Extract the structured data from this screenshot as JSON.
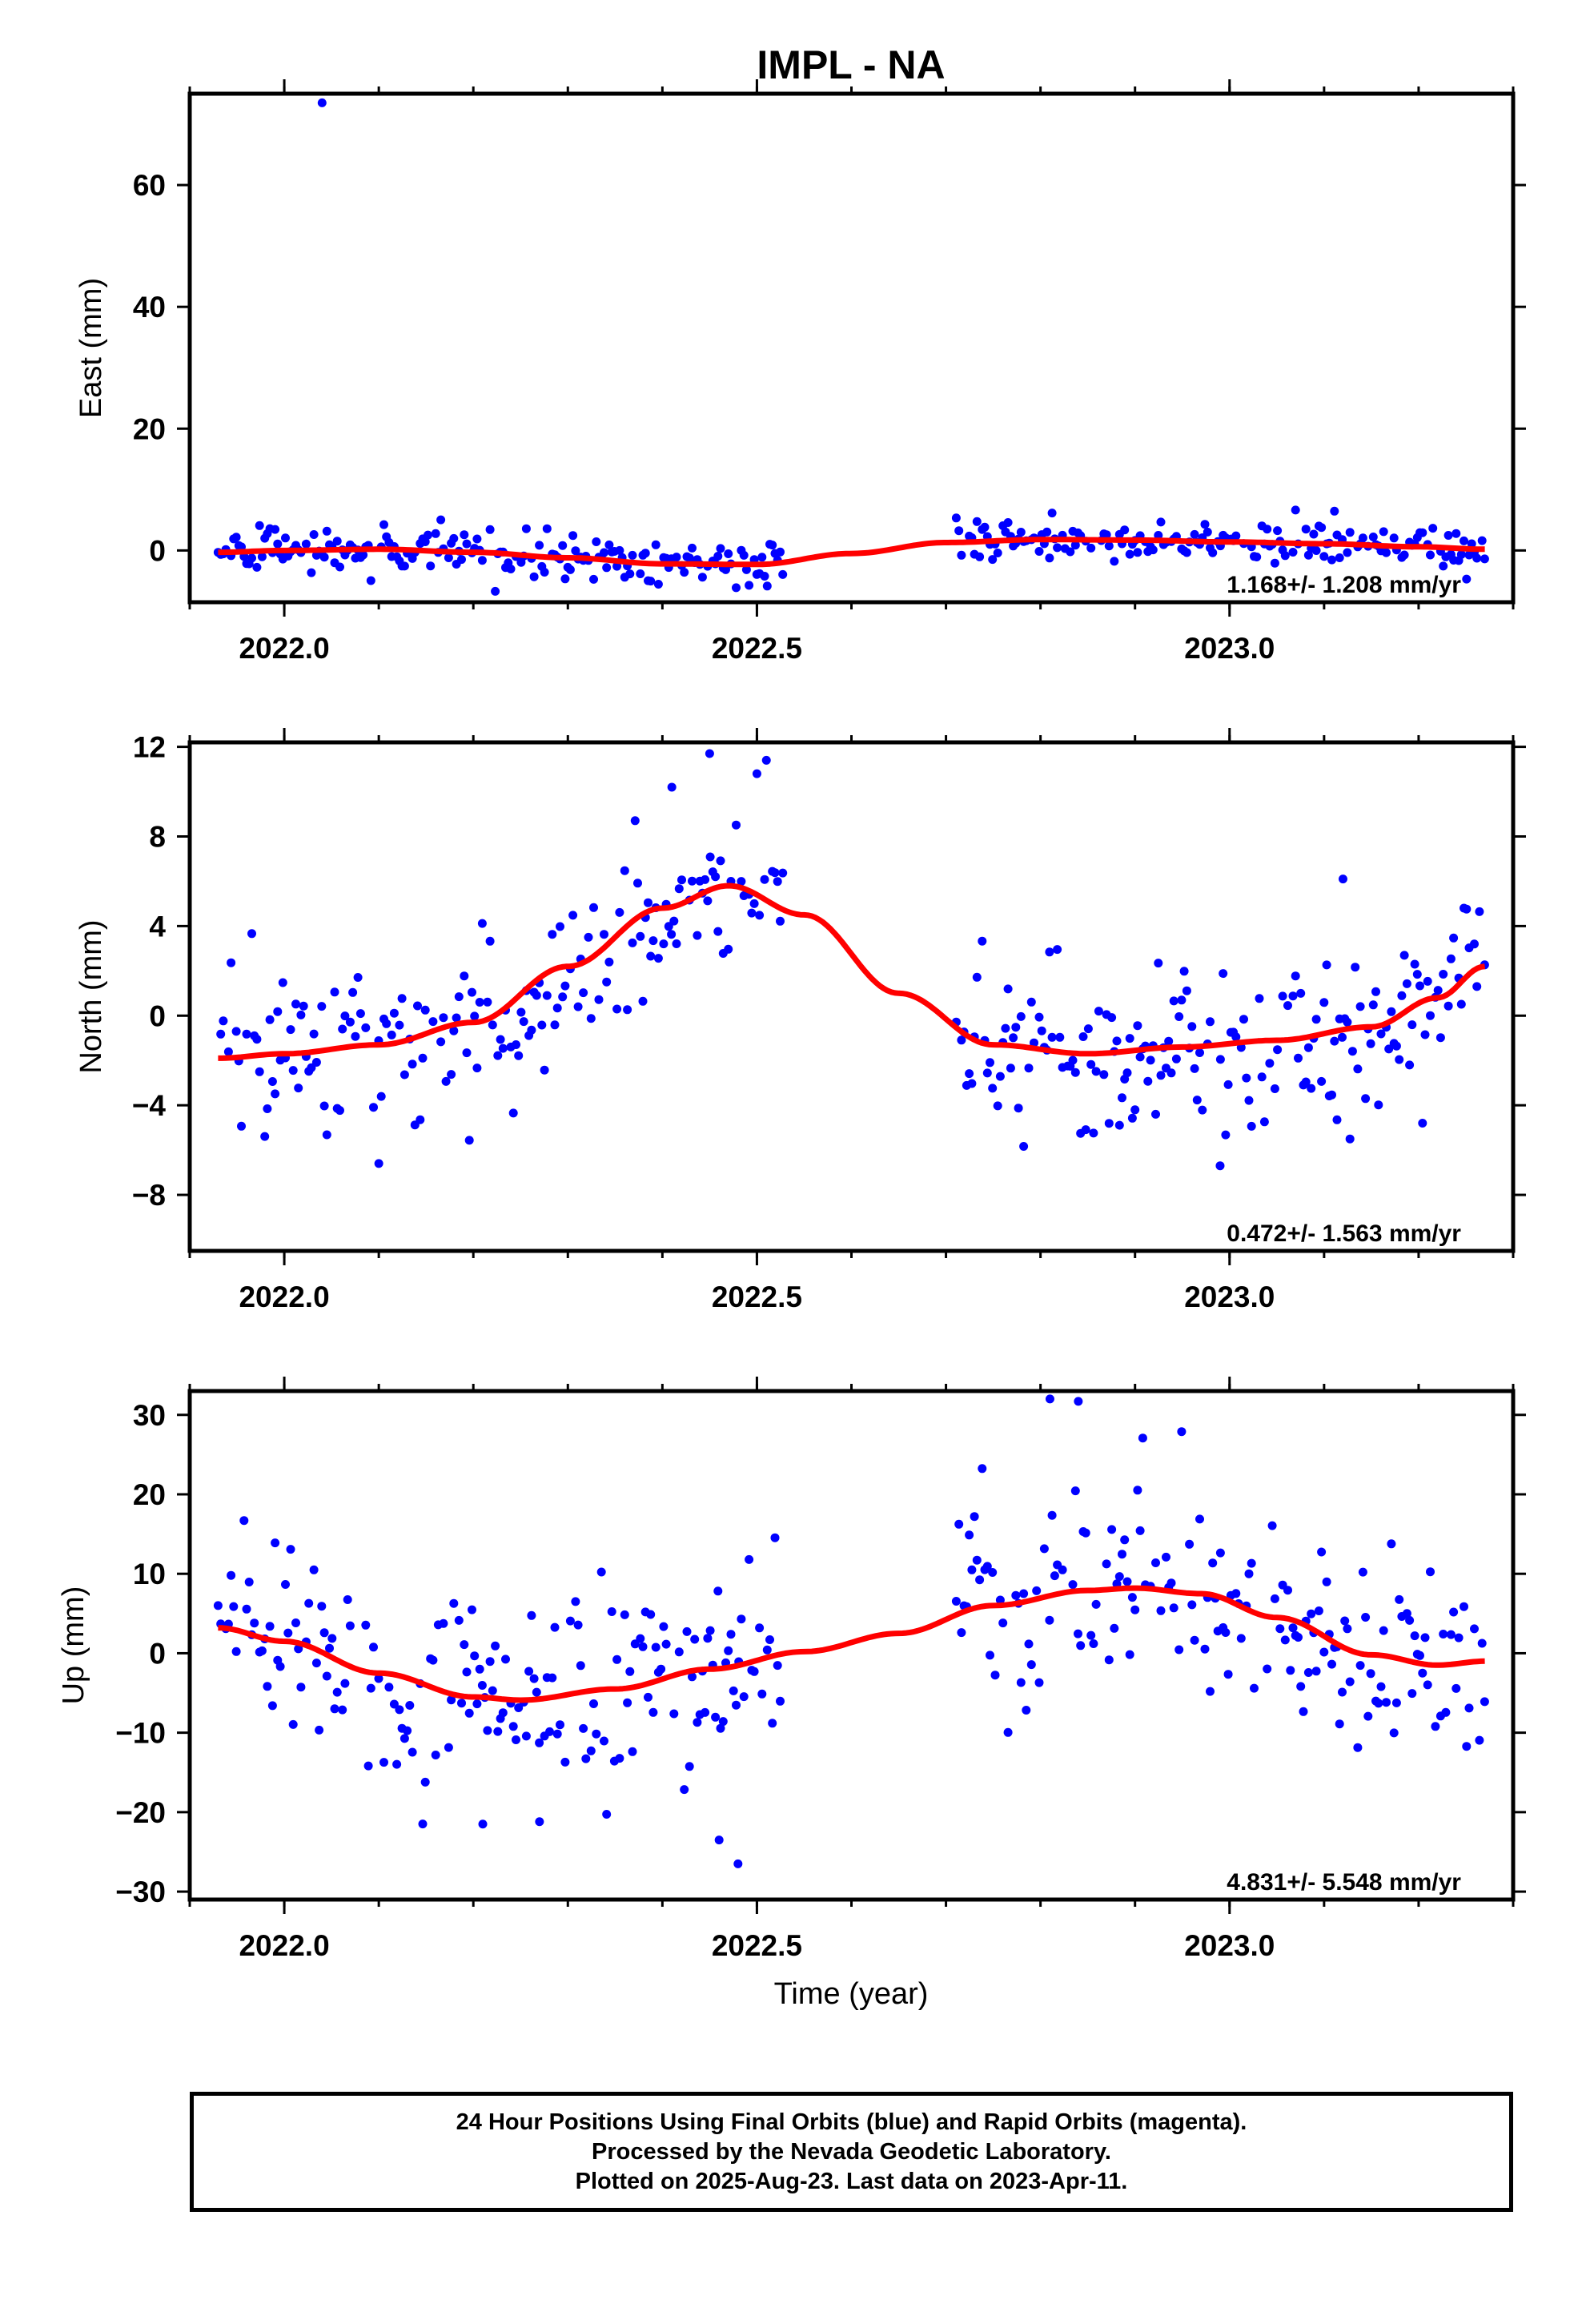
{
  "chart_data": [
    {
      "type": "scatter",
      "title": "IMPL - NA",
      "xlabel": "",
      "ylabel": "East (mm)",
      "xlim": [
        2021.9,
        2023.3
      ],
      "ylim": [
        -8.5,
        75
      ],
      "xticks": [
        {
          "v": 2022.0,
          "label": "2022.0"
        },
        {
          "v": 2022.5,
          "label": "2022.5"
        },
        {
          "v": 2023.0,
          "label": "2023.0"
        }
      ],
      "yticks": [
        {
          "v": 0,
          "label": "0"
        },
        {
          "v": 20,
          "label": "20"
        },
        {
          "v": 40,
          "label": "40"
        },
        {
          "v": 60,
          "label": "60"
        }
      ],
      "rate_text": "1.168+/- 1.208 mm/yr",
      "colors": {
        "final_orbits": "#0000ff",
        "model": "#ff0000"
      },
      "grid": false,
      "data_gap": [
        2022.53,
        2022.71
      ],
      "model_curve": {
        "x": [
          2021.93,
          2022.0,
          2022.1,
          2022.2,
          2022.3,
          2022.4,
          2022.5,
          2022.6,
          2022.7,
          2022.8,
          2022.9,
          2023.0,
          2023.1,
          2023.2,
          2023.27
        ],
        "y": [
          -0.3,
          0.0,
          0.2,
          -0.3,
          -1.2,
          -2.2,
          -2.3,
          -0.5,
          1.3,
          1.8,
          1.7,
          1.4,
          1.1,
          0.6,
          0.2
        ]
      },
      "outliers": [
        {
          "x": 2022.04,
          "y": 73.5
        }
      ],
      "scatter_noise_sd": 1.8
    },
    {
      "type": "scatter",
      "title": "",
      "xlabel": "",
      "ylabel": "North (mm)",
      "xlim": [
        2021.9,
        2023.3
      ],
      "ylim": [
        -10.5,
        12.2
      ],
      "xticks": [
        {
          "v": 2022.0,
          "label": "2022.0"
        },
        {
          "v": 2022.5,
          "label": "2022.5"
        },
        {
          "v": 2023.0,
          "label": "2023.0"
        }
      ],
      "yticks": [
        {
          "v": -8,
          "label": "−8"
        },
        {
          "v": -4,
          "label": "−4"
        },
        {
          "v": 0,
          "label": "0"
        },
        {
          "v": 4,
          "label": "4"
        },
        {
          "v": 8,
          "label": "8"
        },
        {
          "v": 12,
          "label": "12"
        }
      ],
      "rate_text": "0.472+/- 1.563 mm/yr",
      "colors": {
        "final_orbits": "#0000ff",
        "model": "#ff0000"
      },
      "grid": false,
      "data_gap": [
        2022.53,
        2022.71
      ],
      "model_curve": {
        "x": [
          2021.93,
          2022.0,
          2022.1,
          2022.2,
          2022.3,
          2022.4,
          2022.47,
          2022.55,
          2022.65,
          2022.75,
          2022.85,
          2022.95,
          2023.05,
          2023.15,
          2023.22,
          2023.27
        ],
        "y": [
          -1.9,
          -1.7,
          -1.3,
          -0.3,
          2.2,
          4.8,
          5.8,
          4.5,
          1.0,
          -1.3,
          -1.7,
          -1.4,
          -1.1,
          -0.5,
          0.8,
          2.2
        ]
      },
      "outliers": [
        {
          "x": 2022.41,
          "y": 10.2
        },
        {
          "x": 2022.45,
          "y": 11.7
        },
        {
          "x": 2022.5,
          "y": 10.8
        },
        {
          "x": 2022.51,
          "y": 11.4
        },
        {
          "x": 2022.1,
          "y": -6.6
        },
        {
          "x": 2022.99,
          "y": -6.7
        },
        {
          "x": 2023.12,
          "y": 6.1
        }
      ],
      "scatter_noise_sd": 1.9
    },
    {
      "type": "scatter",
      "title": "",
      "xlabel": "Time (year)",
      "ylabel": "Up (mm)",
      "xlim": [
        2021.9,
        2023.3
      ],
      "ylim": [
        -31,
        33
      ],
      "xticks": [
        {
          "v": 2022.0,
          "label": "2022.0"
        },
        {
          "v": 2022.5,
          "label": "2022.5"
        },
        {
          "v": 2023.0,
          "label": "2023.0"
        }
      ],
      "yticks": [
        {
          "v": -30,
          "label": "−30"
        },
        {
          "v": -20,
          "label": "−20"
        },
        {
          "v": -10,
          "label": "−10"
        },
        {
          "v": 0,
          "label": "0"
        },
        {
          "v": 10,
          "label": "10"
        },
        {
          "v": 20,
          "label": "20"
        },
        {
          "v": 30,
          "label": "30"
        }
      ],
      "rate_text": "4.831+/- 5.548 mm/yr",
      "colors": {
        "final_orbits": "#0000ff",
        "model": "#ff0000"
      },
      "grid": false,
      "data_gap": [
        2022.53,
        2022.71
      ],
      "model_curve": {
        "x": [
          2021.93,
          2022.0,
          2022.1,
          2022.2,
          2022.25,
          2022.35,
          2022.45,
          2022.55,
          2022.65,
          2022.75,
          2022.85,
          2022.9,
          2022.97,
          2023.05,
          2023.15,
          2023.22,
          2023.27
        ],
        "y": [
          3.2,
          1.5,
          -2.5,
          -5.5,
          -5.9,
          -4.5,
          -2.0,
          0.2,
          2.5,
          6.0,
          7.9,
          8.2,
          7.5,
          4.5,
          -0.2,
          -1.5,
          -1.0
        ]
      },
      "outliers": [
        {
          "x": 2022.81,
          "y": 32.0
        },
        {
          "x": 2022.84,
          "y": 31.7
        },
        {
          "x": 2022.48,
          "y": -26.5
        },
        {
          "x": 2022.46,
          "y": -23.5
        },
        {
          "x": 2022.21,
          "y": -21.5
        },
        {
          "x": 2022.27,
          "y": -21.2
        }
      ],
      "scatter_noise_sd": 6.5
    }
  ],
  "footer": {
    "line1": "24 Hour Positions Using Final Orbits (blue) and Rapid Orbits (magenta).",
    "line2": "Processed by the Nevada Geodetic Laboratory.",
    "line3": "Plotted on 2025-Aug-23. Last data on 2023-Apr-11."
  }
}
